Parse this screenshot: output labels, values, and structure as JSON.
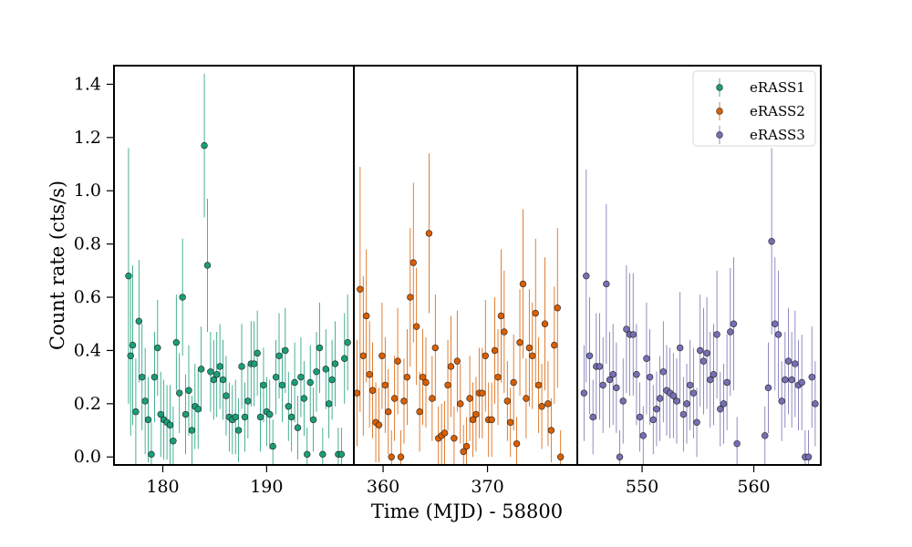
{
  "chart_data": {
    "type": "scatter",
    "xlabel": "Time (MJD) - 58800",
    "ylabel": "Count rate (cts/s)",
    "ylim": [
      -0.03,
      1.47
    ],
    "yticks": [
      "0.0",
      "0.2",
      "0.4",
      "0.6",
      "0.8",
      "1.0",
      "1.2",
      "1.4"
    ],
    "grid": false,
    "legend_position": "top-right",
    "panels": [
      {
        "xlim": [
          175.3,
          198.4
        ],
        "xticks": [
          "180",
          "190"
        ]
      },
      {
        "xlim": [
          357.2,
          378.6
        ],
        "xticks": [
          "360",
          "370"
        ]
      },
      {
        "xlim": [
          544.2,
          566.0
        ],
        "xticks": [
          "550",
          "560"
        ]
      }
    ],
    "series": [
      {
        "name": "eRASS1",
        "color": "#1b9e77",
        "x": [
          176.7,
          176.9,
          177.1,
          177.4,
          177.7,
          178.0,
          178.3,
          178.6,
          178.9,
          179.2,
          179.5,
          179.8,
          180.1,
          180.4,
          180.7,
          181.0,
          181.3,
          181.6,
          181.9,
          182.2,
          182.5,
          182.8,
          183.1,
          183.4,
          183.7,
          184.0,
          184.3,
          184.6,
          184.9,
          185.2,
          185.5,
          185.8,
          186.1,
          186.4,
          186.7,
          187.0,
          187.3,
          187.6,
          187.9,
          188.2,
          188.5,
          188.8,
          189.1,
          189.4,
          189.7,
          190.0,
          190.3,
          190.6,
          190.9,
          191.2,
          191.5,
          191.8,
          192.1,
          192.4,
          192.7,
          193.0,
          193.3,
          193.6,
          193.9,
          194.2,
          194.5,
          194.8,
          195.1,
          195.4,
          195.7,
          196.0,
          196.3,
          196.6,
          196.9,
          197.2,
          197.5,
          197.8
        ],
        "y": [
          0.68,
          0.38,
          0.42,
          0.17,
          0.51,
          0.3,
          0.21,
          0.14,
          0.01,
          0.3,
          0.41,
          0.16,
          0.14,
          0.13,
          0.12,
          0.06,
          0.43,
          0.24,
          0.6,
          0.16,
          0.25,
          0.1,
          0.19,
          0.18,
          0.33,
          1.17,
          0.72,
          0.32,
          0.29,
          0.31,
          0.34,
          0.29,
          0.23,
          0.15,
          0.14,
          0.15,
          0.1,
          0.34,
          0.15,
          0.21,
          0.35,
          0.35,
          0.39,
          0.15,
          0.27,
          0.17,
          0.16,
          0.04,
          0.3,
          0.38,
          0.27,
          0.4,
          0.19,
          0.15,
          0.28,
          0.11,
          0.3,
          0.22,
          0.01,
          0.28,
          0.14,
          0.32,
          0.41,
          0.01,
          0.33,
          0.2,
          0.29,
          0.35,
          0.01,
          0.01,
          0.37,
          0.43
        ],
        "err": [
          0.48,
          0.3,
          0.3,
          0.2,
          0.23,
          0.2,
          0.2,
          0.16,
          0.12,
          0.17,
          0.18,
          0.16,
          0.15,
          0.14,
          0.15,
          0.13,
          0.18,
          0.15,
          0.22,
          0.15,
          0.17,
          0.13,
          0.16,
          0.15,
          0.16,
          0.27,
          0.25,
          0.15,
          0.15,
          0.16,
          0.16,
          0.15,
          0.15,
          0.13,
          0.13,
          0.14,
          0.12,
          0.16,
          0.13,
          0.14,
          0.16,
          0.16,
          0.16,
          0.13,
          0.14,
          0.13,
          0.13,
          0.1,
          0.14,
          0.16,
          0.14,
          0.16,
          0.13,
          0.13,
          0.15,
          0.12,
          0.15,
          0.14,
          0.1,
          0.14,
          0.12,
          0.15,
          0.17,
          0.1,
          0.15,
          0.13,
          0.15,
          0.16,
          0.1,
          0.1,
          0.17,
          0.18
        ]
      },
      {
        "name": "eRASS2",
        "color": "#d95f02",
        "x": [
          357.5,
          357.8,
          358.1,
          358.4,
          358.7,
          359.0,
          359.3,
          359.6,
          359.9,
          360.2,
          360.5,
          360.8,
          361.1,
          361.4,
          361.7,
          362.0,
          362.3,
          362.6,
          362.9,
          363.2,
          363.5,
          363.8,
          364.1,
          364.4,
          364.7,
          365.0,
          365.3,
          365.6,
          365.9,
          366.2,
          366.5,
          366.8,
          367.1,
          367.4,
          367.7,
          368.0,
          368.3,
          368.6,
          368.9,
          369.2,
          369.5,
          369.8,
          370.1,
          370.4,
          370.7,
          371.0,
          371.3,
          371.6,
          371.9,
          372.2,
          372.5,
          372.8,
          373.1,
          373.4,
          373.7,
          374.0,
          374.3,
          374.6,
          374.9,
          375.2,
          375.5,
          375.8,
          376.1,
          376.4,
          376.7,
          377.0
        ],
        "y": [
          0.24,
          0.63,
          0.38,
          0.53,
          0.31,
          0.25,
          0.13,
          0.12,
          0.38,
          0.27,
          0.17,
          0.0,
          0.22,
          0.36,
          0.0,
          0.21,
          0.3,
          0.6,
          0.73,
          0.49,
          0.17,
          0.3,
          0.28,
          0.84,
          0.22,
          0.41,
          0.07,
          0.08,
          0.09,
          0.27,
          0.34,
          0.07,
          0.36,
          0.2,
          0.02,
          0.04,
          0.22,
          0.14,
          0.16,
          0.24,
          0.24,
          0.38,
          0.14,
          0.14,
          0.4,
          0.3,
          0.53,
          0.47,
          0.21,
          0.13,
          0.28,
          0.05,
          0.43,
          0.65,
          0.22,
          0.41,
          0.38,
          0.54,
          0.27,
          0.19,
          0.5,
          0.2,
          0.1,
          0.42,
          0.56,
          0.0
        ],
        "err": [
          0.2,
          0.46,
          0.3,
          0.25,
          0.2,
          0.18,
          0.15,
          0.14,
          0.2,
          0.18,
          0.16,
          0.1,
          0.16,
          0.2,
          0.1,
          0.16,
          0.18,
          0.26,
          0.3,
          0.22,
          0.15,
          0.18,
          0.17,
          0.3,
          0.16,
          0.2,
          0.12,
          0.12,
          0.12,
          0.17,
          0.19,
          0.12,
          0.19,
          0.15,
          0.1,
          0.11,
          0.16,
          0.14,
          0.14,
          0.17,
          0.17,
          0.21,
          0.14,
          0.14,
          0.2,
          0.18,
          0.25,
          0.23,
          0.15,
          0.13,
          0.18,
          0.1,
          0.2,
          0.28,
          0.15,
          0.22,
          0.2,
          0.28,
          0.18,
          0.16,
          0.25,
          0.16,
          0.12,
          0.22,
          0.3,
          0.1
        ]
      },
      {
        "name": "eRASS3",
        "color": "#7570b3",
        "x": [
          544.8,
          545.0,
          545.3,
          545.6,
          545.9,
          546.2,
          546.5,
          546.8,
          547.1,
          547.4,
          547.7,
          548.0,
          548.3,
          548.6,
          548.9,
          549.2,
          549.5,
          549.8,
          550.1,
          550.4,
          550.7,
          551.0,
          551.3,
          551.6,
          551.9,
          552.2,
          552.5,
          552.8,
          553.1,
          553.4,
          553.7,
          554.0,
          554.3,
          554.6,
          554.9,
          555.2,
          555.5,
          555.8,
          556.1,
          556.4,
          556.7,
          557.0,
          557.3,
          557.6,
          557.9,
          558.2,
          558.5,
          561.0,
          561.3,
          561.6,
          561.9,
          562.2,
          562.5,
          562.8,
          563.1,
          563.4,
          563.7,
          564.0,
          564.3,
          564.6,
          564.9,
          565.2,
          565.5
        ],
        "y": [
          0.24,
          0.68,
          0.38,
          0.15,
          0.34,
          0.34,
          0.27,
          0.65,
          0.29,
          0.31,
          0.26,
          0.0,
          0.21,
          0.48,
          0.46,
          0.46,
          0.31,
          0.15,
          0.08,
          0.37,
          0.3,
          0.14,
          0.18,
          0.22,
          0.32,
          0.25,
          0.24,
          0.23,
          0.21,
          0.41,
          0.16,
          0.2,
          0.27,
          0.24,
          0.13,
          0.4,
          0.36,
          0.39,
          0.29,
          0.31,
          0.46,
          0.18,
          0.2,
          0.28,
          0.47,
          0.5,
          0.05,
          0.08,
          0.26,
          0.81,
          0.5,
          0.46,
          0.21,
          0.29,
          0.36,
          0.29,
          0.35,
          0.27,
          0.28,
          0.0,
          0.0,
          0.3,
          0.2
        ],
        "err": [
          0.18,
          0.4,
          0.22,
          0.14,
          0.2,
          0.2,
          0.18,
          0.3,
          0.18,
          0.19,
          0.17,
          0.1,
          0.16,
          0.24,
          0.23,
          0.23,
          0.19,
          0.13,
          0.11,
          0.21,
          0.18,
          0.13,
          0.14,
          0.16,
          0.19,
          0.17,
          0.17,
          0.16,
          0.16,
          0.21,
          0.14,
          0.15,
          0.17,
          0.17,
          0.13,
          0.21,
          0.2,
          0.21,
          0.18,
          0.19,
          0.24,
          0.14,
          0.15,
          0.18,
          0.24,
          0.25,
          0.1,
          0.11,
          0.17,
          0.35,
          0.25,
          0.24,
          0.15,
          0.18,
          0.2,
          0.18,
          0.2,
          0.17,
          0.18,
          0.1,
          0.1,
          0.19,
          0.16
        ]
      }
    ]
  }
}
